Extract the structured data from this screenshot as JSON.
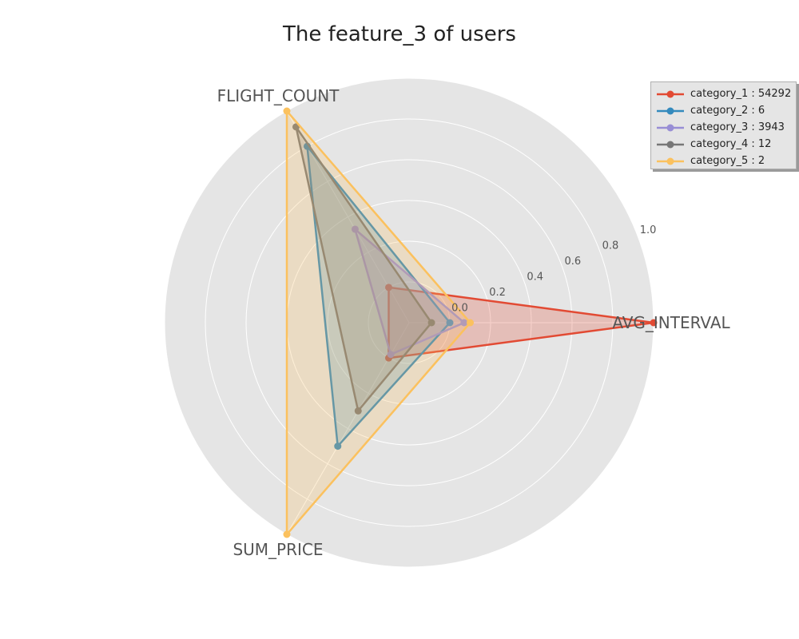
{
  "chart_data": {
    "type": "radar",
    "title": "The feature_3 of users",
    "axes": [
      "AVG_INTERVAL",
      "FLIGHT_COUNT",
      "SUM_PRICE"
    ],
    "r_ticks": [
      "0.0",
      "0.2",
      "0.4",
      "0.6",
      "0.8",
      "1.0"
    ],
    "r_values": [
      0.0,
      0.2,
      0.4,
      0.6,
      0.8,
      1.0
    ],
    "rlim": [
      -0.2,
      1.0
    ],
    "grid": true,
    "legend_position": "top-right",
    "series": [
      {
        "name": "category_1 : 54292",
        "color": "#E24A33",
        "values": [
          1.0,
          0.0,
          0.0
        ]
      },
      {
        "name": "category_2 : 6",
        "color": "#348ABD",
        "values": [
          0.0,
          0.8,
          0.5
        ]
      },
      {
        "name": "category_3 : 3943",
        "color": "#988ED5",
        "values": [
          0.07,
          0.33,
          -0.02
        ]
      },
      {
        "name": "category_4 : 12",
        "color": "#777777",
        "values": [
          -0.09,
          0.91,
          0.3
        ]
      },
      {
        "name": "category_5 : 2",
        "color": "#FBC15E",
        "values": [
          0.1,
          1.0,
          1.0
        ]
      }
    ]
  }
}
